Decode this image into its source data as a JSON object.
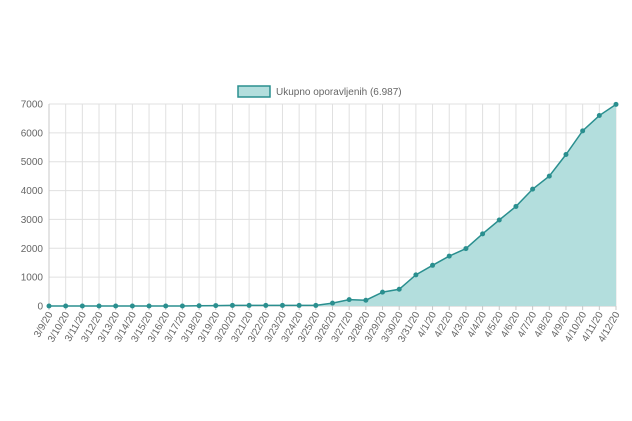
{
  "chart_data": {
    "type": "area",
    "x": [
      "3/9/20",
      "3/10/20",
      "3/11/20",
      "3/12/20",
      "3/13/20",
      "3/14/20",
      "3/15/20",
      "3/16/20",
      "3/17/20",
      "3/18/20",
      "3/19/20",
      "3/20/20",
      "3/21/20",
      "3/22/20",
      "3/23/20",
      "3/24/20",
      "3/25/20",
      "3/26/20",
      "3/27/20",
      "3/28/20",
      "3/29/20",
      "3/30/20",
      "3/31/20",
      "4/1/20",
      "4/2/20",
      "4/3/20",
      "4/4/20",
      "4/5/20",
      "4/6/20",
      "4/7/20",
      "4/8/20",
      "4/9/20",
      "4/10/20",
      "4/11/20",
      "4/12/20"
    ],
    "series": [
      {
        "name": "Ukupno oporavljenih (6.987)",
        "values": [
          0,
          0,
          0,
          0,
          0,
          0,
          0,
          0,
          0,
          10,
          15,
          20,
          20,
          20,
          20,
          20,
          20,
          100,
          220,
          200,
          480,
          580,
          1080,
          1410,
          1730,
          1990,
          2500,
          2980,
          3450,
          4050,
          4500,
          5250,
          6070,
          6600,
          6987
        ]
      }
    ],
    "ylim": [
      0,
      7000
    ],
    "yticks": [
      0,
      1000,
      2000,
      3000,
      4000,
      5000,
      6000,
      7000
    ],
    "grid": true,
    "legend_position": "top-center",
    "colors": {
      "line": "#2a8f8f",
      "fill": "#b3dedd",
      "legend_fill": "#b3dedd",
      "legend_stroke": "#2a8f8f",
      "grid": "#e0e0e0",
      "axis": "#c8c8c8",
      "text": "#666666"
    }
  }
}
